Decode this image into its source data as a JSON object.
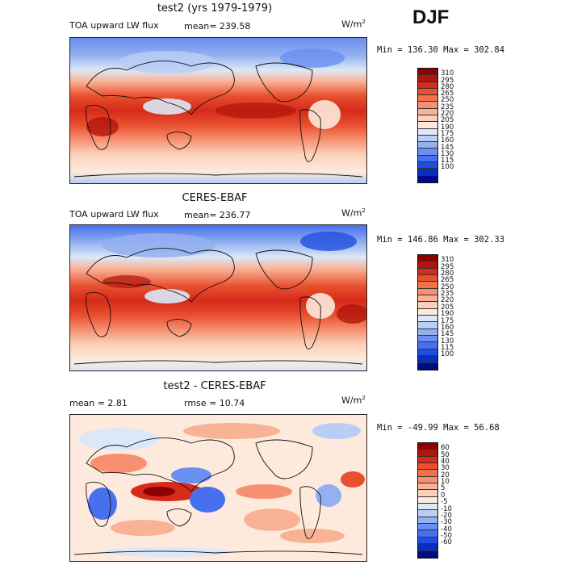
{
  "season": "DJF",
  "panels": [
    {
      "title": "test2 (yrs 1979-1979)",
      "variable": "TOA upward LW flux",
      "stat1": "mean= 239.58",
      "stat2": "",
      "units": "W/m",
      "units_sup": "2",
      "minmax": "Min = 136.30 Max = 302.84",
      "colorbar": {
        "labels": [
          "310",
          "295",
          "280",
          "265",
          "250",
          "235",
          "220",
          "205",
          "190",
          "175",
          "160",
          "145",
          "130",
          "115",
          "100"
        ],
        "colors": [
          "#8b0000",
          "#b2140d",
          "#d62a1a",
          "#e8502e",
          "#f2704a",
          "#f69070",
          "#f9b295",
          "#fbd0b8",
          "#fdeadc",
          "#dce8f8",
          "#b9cdf5",
          "#93b0f0",
          "#6b8ff0",
          "#4670ee",
          "#1f4fe0",
          "#0a2fbf",
          "#000b8b"
        ],
        "ylabel": "W/m2"
      }
    },
    {
      "title": "CERES-EBAF",
      "variable": "TOA upward LW flux",
      "stat1": "mean= 236.77",
      "stat2": "",
      "units": "W/m",
      "units_sup": "2",
      "minmax": "Min = 146.86 Max = 302.33",
      "colorbar": {
        "labels": [
          "310",
          "295",
          "280",
          "265",
          "250",
          "235",
          "220",
          "205",
          "190",
          "175",
          "160",
          "145",
          "130",
          "115",
          "100"
        ],
        "colors": [
          "#8b0000",
          "#b2140d",
          "#d62a1a",
          "#e8502e",
          "#f2704a",
          "#f69070",
          "#f9b295",
          "#fbd0b8",
          "#fdeadc",
          "#dce8f8",
          "#b9cdf5",
          "#93b0f0",
          "#6b8ff0",
          "#4670ee",
          "#1f4fe0",
          "#0a2fbf",
          "#000b8b"
        ]
      }
    },
    {
      "title": "test2 - CERES-EBAF",
      "variable": "",
      "stat1": "mean =    2.81",
      "stat2": "rmse =   10.74",
      "units": "W/m",
      "units_sup": "2",
      "minmax": "Min = -49.99 Max =  56.68",
      "colorbar": {
        "labels": [
          "60",
          "50",
          "40",
          "30",
          "20",
          "10",
          "5",
          "0",
          "-5",
          "-10",
          "-20",
          "-30",
          "-40",
          "-50",
          "-60"
        ],
        "colors": [
          "#8b0000",
          "#b2140d",
          "#d62a1a",
          "#e8502e",
          "#f2704a",
          "#f69070",
          "#f9b295",
          "#fbd0b8",
          "#fdeadc",
          "#dce8f8",
          "#b9cdf5",
          "#93b0f0",
          "#6b8ff0",
          "#4670ee",
          "#1f4fe0",
          "#0a2fbf",
          "#000b8b"
        ]
      }
    }
  ],
  "chart_data": [
    {
      "type": "heatmap",
      "title": "test2 (yrs 1979-1979)",
      "variable": "TOA upward LW flux",
      "units": "W/m2",
      "mean": 239.58,
      "min": 136.3,
      "max": 302.84,
      "levels": [
        100,
        115,
        130,
        145,
        160,
        175,
        190,
        205,
        220,
        235,
        250,
        265,
        280,
        295,
        310
      ]
    },
    {
      "type": "heatmap",
      "title": "CERES-EBAF",
      "variable": "TOA upward LW flux",
      "units": "W/m2",
      "mean": 236.77,
      "min": 146.86,
      "max": 302.33,
      "levels": [
        100,
        115,
        130,
        145,
        160,
        175,
        190,
        205,
        220,
        235,
        250,
        265,
        280,
        295,
        310
      ]
    },
    {
      "type": "heatmap",
      "title": "test2 - CERES-EBAF",
      "units": "W/m2",
      "mean": 2.81,
      "rmse": 10.74,
      "min": -49.99,
      "max": 56.68,
      "levels": [
        -60,
        -50,
        -40,
        -30,
        -20,
        -10,
        -5,
        0,
        5,
        10,
        20,
        30,
        40,
        50,
        60
      ]
    }
  ]
}
